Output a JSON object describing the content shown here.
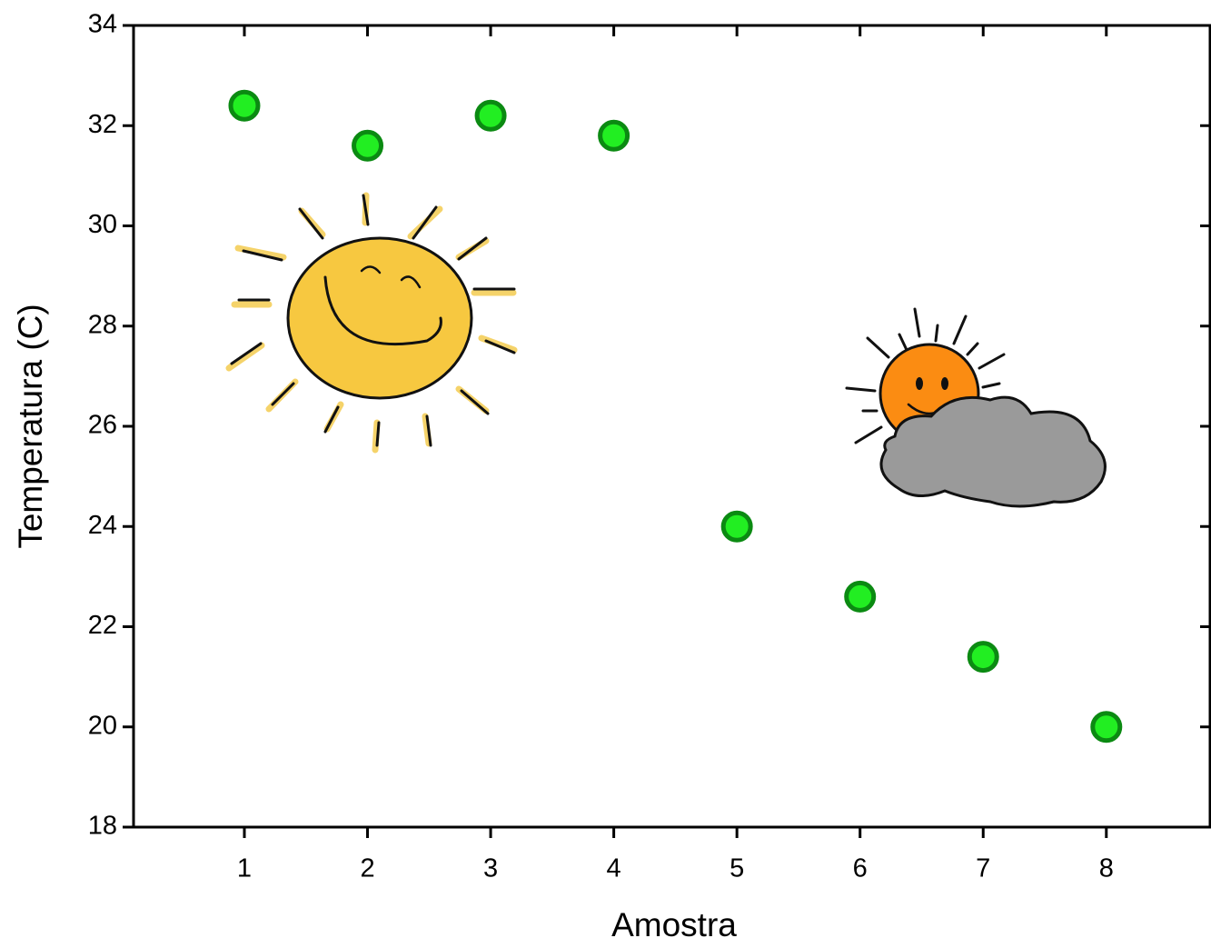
{
  "chart_data": {
    "type": "scatter",
    "x_label": "Amostra",
    "y_label": "Temperatura (C)",
    "x": [
      1,
      2,
      3,
      4,
      5,
      6,
      7,
      8
    ],
    "values": [
      32.4,
      31.6,
      32.2,
      31.8,
      24,
      22.6,
      21.4,
      20
    ],
    "color": "#22ee22",
    "edge_color": "#0b8a12",
    "xlim": [
      0.1,
      8.85
    ],
    "xticks": [
      1,
      2,
      3,
      4,
      5,
      6,
      7,
      8
    ],
    "ylim": [
      18,
      34
    ],
    "yticks": [
      18,
      20,
      22,
      24,
      26,
      28,
      30,
      32,
      34
    ],
    "grid": false
  }
}
